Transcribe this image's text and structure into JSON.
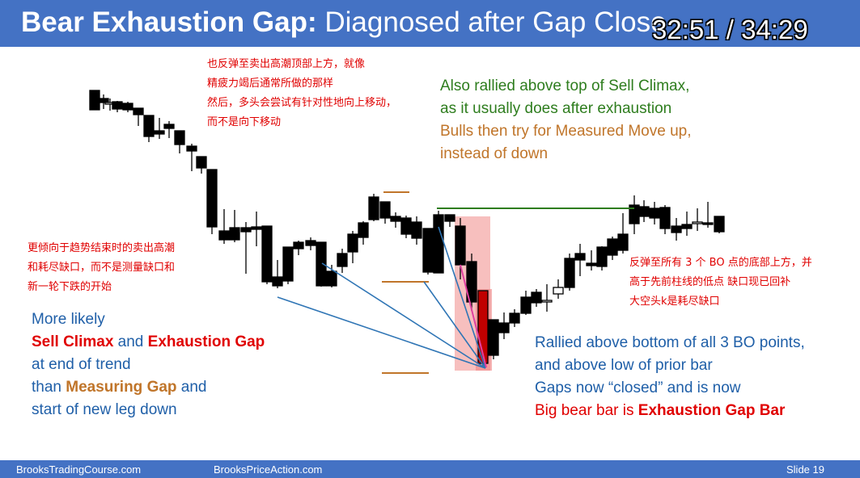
{
  "slide": {
    "title_bold": "Bear Exhaustion Gap:",
    "title_rest": " Diagnosed after Gap Close",
    "timer": "32:51 / 34:29"
  },
  "notes": {
    "cn_top": [
      "也反弹至卖出高潮顶部上方，就像",
      "精疲力竭后通常所做的那样",
      "然后，多头会尝试有针对性地向上移动，",
      "而不是向下移动"
    ],
    "en_top_green": [
      "Also rallied above top of Sell Climax,",
      "as it usually does after exhaustion"
    ],
    "en_top_orange": [
      "Bulls then try for Measured Move up,",
      "instead of down"
    ],
    "cn_left": [
      "更倾向于趋势结束时的卖出高潮",
      "和耗尽缺口，而不是测量缺口和",
      "新一轮下跌的开始"
    ],
    "en_left": {
      "line1": "More likely",
      "sell_climax": "Sell Climax",
      "and": " and ",
      "exhaustion_gap": "Exhaustion Gap",
      "line3": "at end of trend",
      "than": "than ",
      "measuring_gap": "Measuring Gap",
      "and2": " and",
      "line5": "start of new leg down"
    },
    "cn_right": [
      "反弹至所有 3 个 BO 点的底部上方，并",
      "高于先前柱线的低点 缺口现已回补",
      "大空头k是耗尽缺口"
    ],
    "en_right": {
      "line1": "Rallied above bottom of all 3 BO points,",
      "line2": "and above low of prior bar",
      "line3": "Gaps now “closed” and is now",
      "line4_plain": "Big bear bar is ",
      "line4_bold": "Exhaustion Gap Bar"
    }
  },
  "footer": {
    "left": "BrooksTradingCourse.com",
    "center": "BrooksPriceAction.com",
    "right": "Slide  19"
  },
  "colors": {
    "title_bar": "#4472c4",
    "bull_body": "#ffffff",
    "bear_body": "#000000",
    "exhaustion_bar": "#c00000",
    "highlight": "#f4a9a8",
    "blue_lines": "#2f75b5",
    "green_line": "#2e7d1e",
    "orange_levels": "#c0752a",
    "pink_line": "#e040a0"
  }
}
